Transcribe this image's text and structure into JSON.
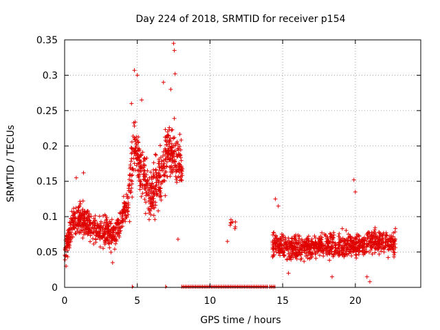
{
  "chart_data": {
    "type": "scatter",
    "title": "Day 224 of 2018, SRMTID for receiver p154",
    "xlabel": "GPS time / hours",
    "ylabel": "SRMTID / TECUs",
    "xlim": [
      0,
      24.5
    ],
    "ylim": [
      0,
      0.35
    ],
    "x_ticks": [
      0,
      5,
      10,
      15,
      20
    ],
    "x_tick_labels": [
      "0",
      "5",
      "10",
      "15",
      "20"
    ],
    "y_ticks": [
      0,
      0.05,
      0.1,
      0.15,
      0.2,
      0.25,
      0.3,
      0.35
    ],
    "y_tick_labels": [
      "0",
      "0.05",
      "0.1",
      "0.15",
      "0.2",
      "0.25",
      "0.3",
      "0.35"
    ],
    "grid": true,
    "marker": "plus",
    "color": "#e00000",
    "series": [
      {
        "name": "SRMTID",
        "segments": [
          {
            "x_start": 0.0,
            "x_end": 4.4,
            "baseline": [
              [
                0,
                0.05
              ],
              [
                0.5,
                0.09
              ],
              [
                1.0,
                0.1
              ],
              [
                1.5,
                0.09
              ],
              [
                2.5,
                0.08
              ],
              [
                3.5,
                0.075
              ],
              [
                4.4,
                0.12
              ]
            ],
            "spread": 0.03,
            "count": 520
          },
          {
            "x_start": 4.4,
            "x_end": 8.1,
            "baseline": [
              [
                4.4,
                0.13
              ],
              [
                4.8,
                0.2
              ],
              [
                5.2,
                0.17
              ],
              [
                5.8,
                0.13
              ],
              [
                6.5,
                0.15
              ],
              [
                7.2,
                0.2
              ],
              [
                8.0,
                0.17
              ]
            ],
            "spread": 0.055,
            "count": 480
          },
          {
            "x_start": 11.3,
            "x_end": 11.8,
            "baseline": [
              [
                11.3,
                0.09
              ],
              [
                11.8,
                0.09
              ]
            ],
            "spread": 0.02,
            "count": 8
          },
          {
            "x_start": 14.3,
            "x_end": 22.8,
            "baseline": [
              [
                14.3,
                0.06
              ],
              [
                16,
                0.055
              ],
              [
                18,
                0.06
              ],
              [
                20,
                0.06
              ],
              [
                22.8,
                0.065
              ]
            ],
            "spread": 0.025,
            "count": 900
          }
        ],
        "peaks": [
          [
            4.8,
            0.307
          ],
          [
            5.0,
            0.3
          ],
          [
            5.3,
            0.265
          ],
          [
            7.5,
            0.345
          ],
          [
            7.55,
            0.335
          ],
          [
            7.6,
            0.302
          ],
          [
            7.3,
            0.28
          ],
          [
            6.8,
            0.29
          ],
          [
            4.6,
            0.26
          ],
          [
            14.5,
            0.125
          ],
          [
            14.7,
            0.115
          ],
          [
            19.9,
            0.152
          ],
          [
            20.0,
            0.135
          ],
          [
            1.3,
            0.162
          ],
          [
            0.8,
            0.155
          ]
        ],
        "lows": [
          [
            0.1,
            0.03
          ],
          [
            3.3,
            0.035
          ],
          [
            7.8,
            0.068
          ],
          [
            11.2,
            0.065
          ],
          [
            21.0,
            0.008
          ],
          [
            20.8,
            0.015
          ],
          [
            15.4,
            0.02
          ],
          [
            18.4,
            0.015
          ]
        ]
      },
      {
        "name": "zero markers",
        "x_ranges": [
          [
            4.65,
            4.75
          ],
          [
            6.95,
            7.05
          ],
          [
            8.05,
            14.0
          ],
          [
            14.1,
            14.5
          ]
        ],
        "y": 0
      }
    ]
  }
}
